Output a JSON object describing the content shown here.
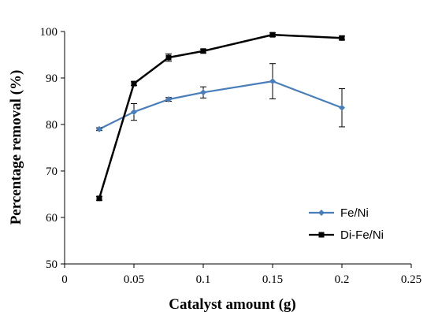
{
  "chart_data": {
    "type": "line",
    "title": "",
    "xlabel": "Catalyst amount (g)",
    "ylabel": "Percentage removal (%)",
    "xlim": [
      0,
      0.25
    ],
    "ylim": [
      50,
      100
    ],
    "x_ticks": [
      0,
      0.05,
      0.1,
      0.15,
      0.2,
      0.25
    ],
    "x_tick_labels": [
      "0",
      "0.05",
      "0.1",
      "0.15",
      "0.2",
      "0.25"
    ],
    "y_ticks": [
      50,
      60,
      70,
      80,
      90,
      100
    ],
    "y_tick_labels": [
      "50",
      "60",
      "70",
      "80",
      "90",
      "100"
    ],
    "grid": false,
    "legend_position": "bottom-right",
    "series": [
      {
        "name": "Fe/Ni",
        "color": "#4a7ebb",
        "marker": "diamond",
        "x": [
          0.025,
          0.05,
          0.075,
          0.1,
          0.15,
          0.2
        ],
        "y": [
          79.0,
          82.7,
          85.4,
          86.9,
          89.3,
          83.6
        ],
        "error": [
          0.3,
          1.8,
          0.4,
          1.2,
          3.8,
          4.1
        ]
      },
      {
        "name": "Di-Fe/Ni",
        "color": "#000000",
        "marker": "square",
        "x": [
          0.025,
          0.05,
          0.075,
          0.1,
          0.15,
          0.2
        ],
        "y": [
          64.1,
          88.8,
          94.4,
          95.8,
          99.3,
          98.6
        ],
        "error": [
          0.4,
          0.4,
          0.8,
          0.4,
          0.4,
          0.4
        ]
      }
    ]
  }
}
